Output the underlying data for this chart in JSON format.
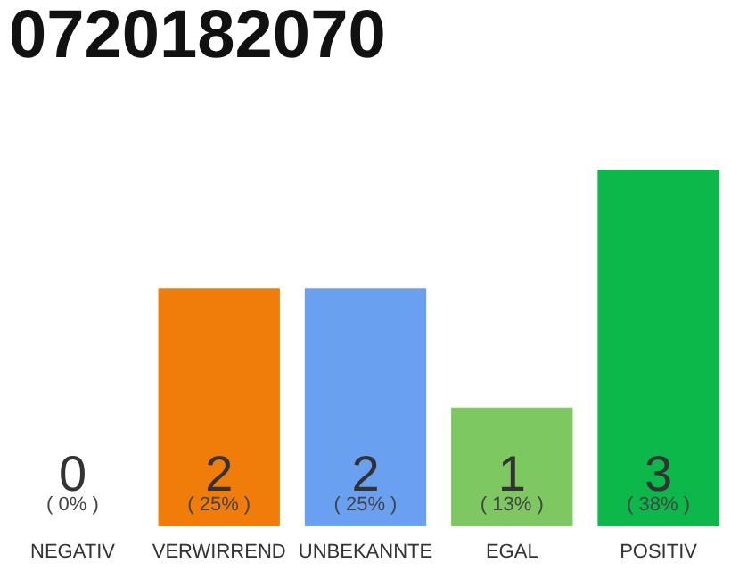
{
  "chart_data": {
    "type": "bar",
    "title": "0720182070",
    "categories": [
      "NEGATIV",
      "VERWIRREND",
      "UNBEKANNTE",
      "EGAL",
      "POSITIV"
    ],
    "values": [
      0,
      2,
      2,
      1,
      3
    ],
    "colors": [
      "#eeeeee",
      "#f07d0a",
      "#6aa0f0",
      "#7dc860",
      "#0db84a"
    ],
    "data_labels": true,
    "annotations": [
      {
        "text": "( 0% )",
        "x": "NEGATIV",
        "y": 0
      },
      {
        "text": "( 25% )",
        "x": "VERWIRREND",
        "y": 0
      },
      {
        "text": "( 25% )",
        "x": "UNBEKANNTE",
        "y": 0
      },
      {
        "text": "( 13% )",
        "x": "EGAL",
        "y": 0
      },
      {
        "text": "( 38% )",
        "x": "POSITIV",
        "y": 0
      }
    ]
  }
}
